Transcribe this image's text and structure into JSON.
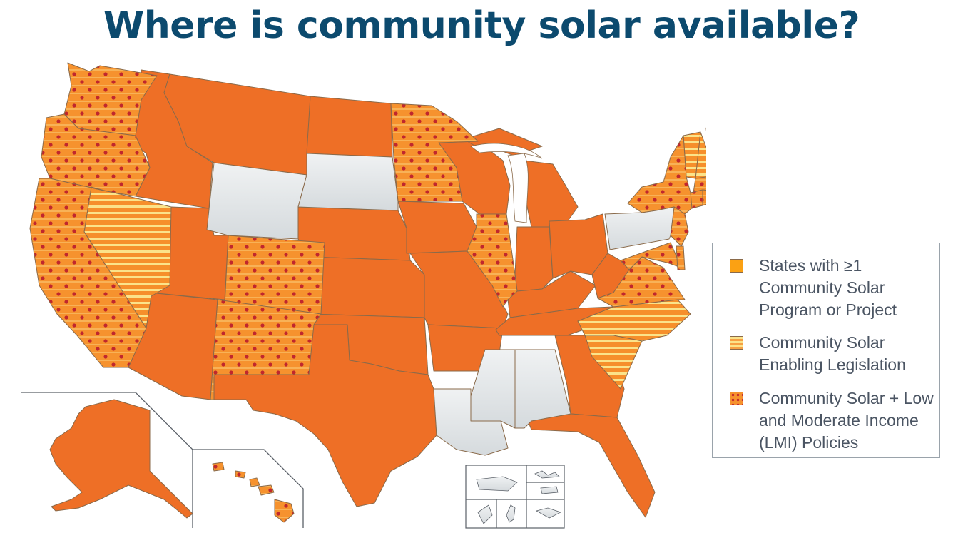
{
  "title": "Where is community solar available?",
  "colors": {
    "orange_program": "#f58a1f",
    "stripe_yellow": "#fbe38a",
    "lmi_dot_red": "#c0272d",
    "no_program_gray": "#dfe3e6",
    "border": "#8a6a4a"
  },
  "legend": {
    "items": [
      {
        "key": "program",
        "label": "States with ≥1 Community Solar Program or Project",
        "pattern": "solid-orange"
      },
      {
        "key": "legislation",
        "label": "Community Solar Enabling Legislation",
        "pattern": "horizontal-stripes"
      },
      {
        "key": "lmi",
        "label": "Community Solar + Low and Moderate Income (LMI) Policies",
        "pattern": "red-dots"
      }
    ]
  },
  "state_categories": {
    "lmi": [
      "WA",
      "OR",
      "CA",
      "CO",
      "NM",
      "MN",
      "IL",
      "NY",
      "NJ",
      "MD",
      "VA",
      "DE",
      "MA",
      "CT",
      "RI"
    ],
    "legislation": [
      "NV",
      "NC",
      "SC",
      "ME",
      "NH",
      "VT"
    ],
    "program": [
      "ID",
      "MT",
      "ND",
      "NE",
      "KS",
      "OK",
      "TX",
      "AZ",
      "UT",
      "IA",
      "MO",
      "AR",
      "WI",
      "MI",
      "IN",
      "OH",
      "KY",
      "TN",
      "WV",
      "GA",
      "FL",
      "AK",
      "HI"
    ],
    "none": [
      "WY",
      "SD",
      "PA",
      "MS",
      "AL",
      "LA",
      "PR",
      "territories"
    ]
  }
}
